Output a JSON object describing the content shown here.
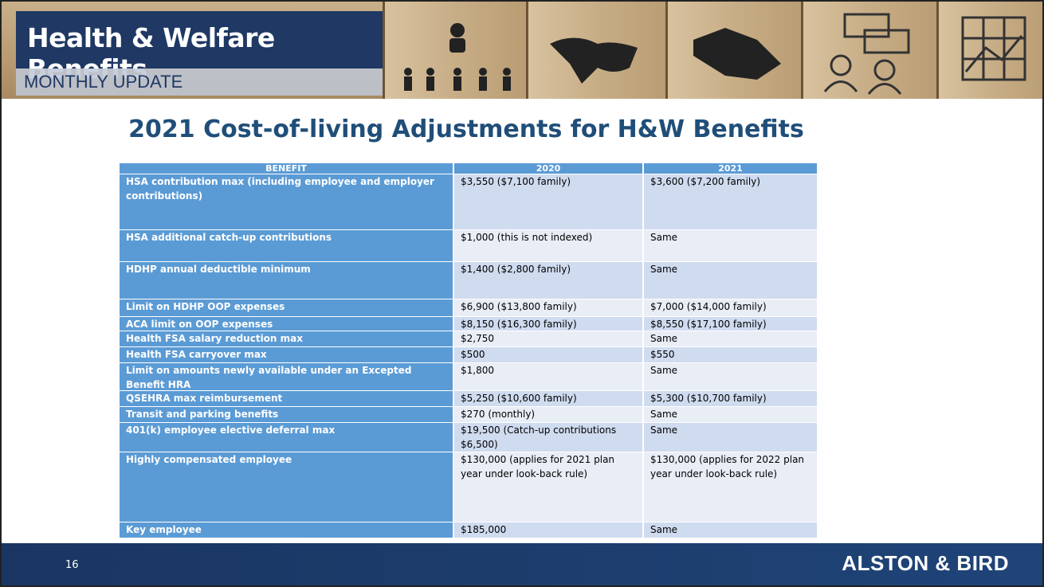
{
  "header": {
    "title": "Health & Welfare Benefits",
    "subtitle": "MONTHLY UPDATE"
  },
  "slide_title": "2021 Cost-of-living Adjustments for H&W Benefits",
  "table": {
    "columns": [
      "BENEFIT",
      "2020",
      "2021"
    ],
    "rows": [
      [
        "HSA contribution max (including employee and employer contributions)",
        "$3,550 ($7,100 family)",
        "$3,600 ($7,200 family)"
      ],
      [
        "HSA additional catch-up contributions",
        "$1,000 (this is not indexed)",
        "Same"
      ],
      [
        "HDHP annual deductible minimum",
        "$1,400 ($2,800 family)",
        "Same"
      ],
      [
        "Limit on HDHP OOP expenses",
        "$6,900 ($13,800 family)",
        "$7,000 ($14,000 family)"
      ],
      [
        "ACA limit on OOP expenses",
        "$8,150 ($16,300 family)",
        "$8,550 ($17,100 family)"
      ],
      [
        "Health FSA salary reduction max",
        "$2,750",
        "Same"
      ],
      [
        "Health FSA carryover max",
        "$500",
        "$550"
      ],
      [
        "Limit on amounts newly available under an Excepted Benefit HRA",
        "$1,800",
        "Same"
      ],
      [
        "QSEHRA max reimbursement",
        "$5,250 ($10,600 family)",
        "$5,300 ($10,700 family)"
      ],
      [
        "Transit and parking benefits",
        "$270 (monthly)",
        "Same"
      ],
      [
        "401(k) employee elective deferral max",
        "$19,500 (Catch-up contributions $6,500)",
        "Same"
      ],
      [
        "Highly compensated employee",
        "$130,000 (applies for 2021 plan year under look-back rule)",
        "$130,000 (applies for 2022 plan year under look-back rule)"
      ],
      [
        "Key employee",
        "$185,000",
        "Same"
      ]
    ]
  },
  "footer": {
    "page_number": "16",
    "brand": "ALSTON & BIRD"
  }
}
